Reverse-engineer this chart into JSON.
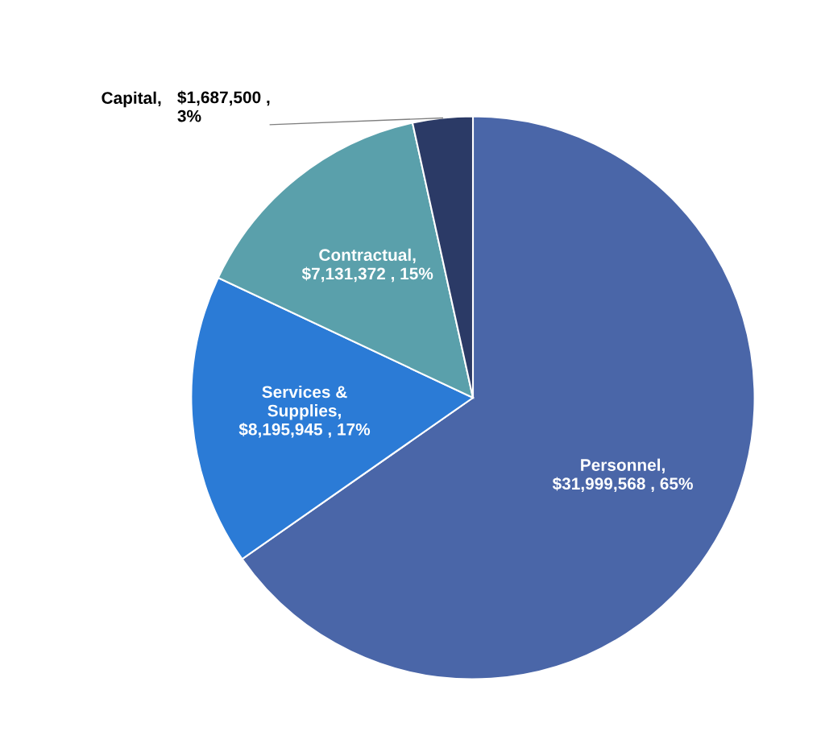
{
  "chart_data": {
    "type": "pie",
    "categories": [
      "Personnel",
      "Services &\nSupplies",
      "Contractual",
      "Capital"
    ],
    "values": [
      31999568,
      8195945,
      7131372,
      1687500
    ],
    "value_labels": [
      ", $31,999,568 , 65%",
      ", $8,195,945 , 17%",
      ", $7,131,372 , 15%",
      ", $1,687,500 ,\n3%"
    ],
    "colors": [
      "#4a66a8",
      "#2b7bd6",
      "#5aa0ab",
      "#2b3a66"
    ],
    "legend": false
  }
}
